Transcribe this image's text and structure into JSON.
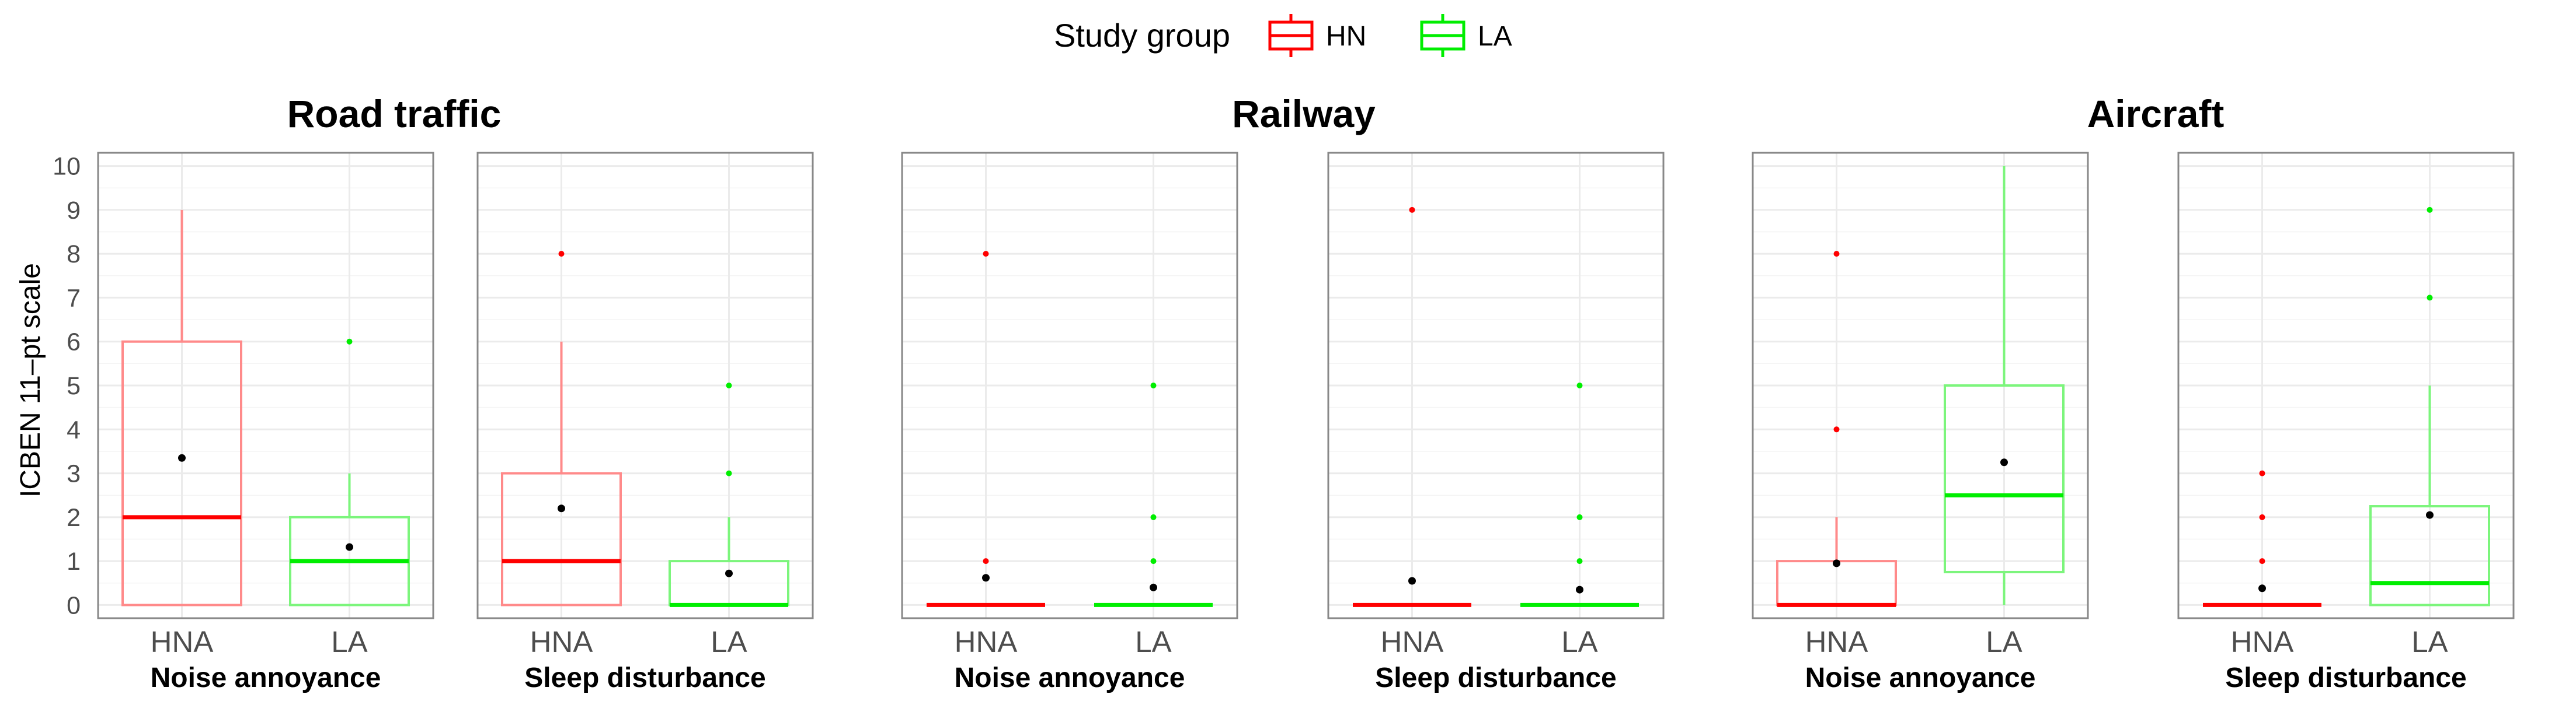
{
  "chart_data": {
    "type": "boxplot",
    "legend": {
      "title": "Study group",
      "position": "top-center",
      "entries": [
        {
          "label": "HN",
          "color": "#ff0000",
          "fill": "#ff8a8a"
        },
        {
          "label": "LA",
          "color": "#00ee00",
          "fill": "#7cf57c"
        }
      ]
    },
    "ylabel": "ICBEN 11–pt scale",
    "ylim": [
      -0.3,
      10.3
    ],
    "yticks": [
      "0",
      "1",
      "2",
      "3",
      "4",
      "5",
      "6",
      "7",
      "8",
      "9",
      "10"
    ],
    "mean_color": "#000000",
    "sources": [
      {
        "title": "Road traffic"
      },
      {
        "title": "Railway"
      },
      {
        "title": "Aircraft"
      }
    ],
    "panels": [
      {
        "source": 0,
        "xlabel": "Noise annoyance",
        "boxes": [
          {
            "group": "HN",
            "tick": "HNA",
            "q1": 0,
            "median": 2,
            "q3": 6,
            "lower": 0,
            "upper": 9,
            "mean": 3.35,
            "outliers": []
          },
          {
            "group": "LA",
            "tick": "LA",
            "q1": 0,
            "median": 1,
            "q3": 2,
            "lower": 0,
            "upper": 3,
            "mean": 1.32,
            "outliers": [
              6
            ]
          }
        ]
      },
      {
        "source": 0,
        "xlabel": "Sleep disturbance",
        "boxes": [
          {
            "group": "HN",
            "tick": "HNA",
            "q1": 0,
            "median": 1,
            "q3": 3,
            "lower": 0,
            "upper": 6,
            "mean": 2.2,
            "outliers": [
              8
            ]
          },
          {
            "group": "LA",
            "tick": "LA",
            "q1": 0,
            "median": 0,
            "q3": 1,
            "lower": 0,
            "upper": 2,
            "mean": 0.72,
            "outliers": [
              3,
              5
            ]
          }
        ]
      },
      {
        "source": 1,
        "xlabel": "Noise annoyance",
        "boxes": [
          {
            "group": "HN",
            "tick": "HNA",
            "q1": 0,
            "median": 0,
            "q3": 0,
            "lower": 0,
            "upper": 0,
            "mean": 0.62,
            "outliers": [
              1,
              8
            ]
          },
          {
            "group": "LA",
            "tick": "LA",
            "q1": 0,
            "median": 0,
            "q3": 0,
            "lower": 0,
            "upper": 0,
            "mean": 0.4,
            "outliers": [
              1,
              2,
              5
            ]
          }
        ]
      },
      {
        "source": 1,
        "xlabel": "Sleep disturbance",
        "boxes": [
          {
            "group": "HN",
            "tick": "HNA",
            "q1": 0,
            "median": 0,
            "q3": 0,
            "lower": 0,
            "upper": 0,
            "mean": 0.55,
            "outliers": [
              9
            ]
          },
          {
            "group": "LA",
            "tick": "LA",
            "q1": 0,
            "median": 0,
            "q3": 0,
            "lower": 0,
            "upper": 0,
            "mean": 0.35,
            "outliers": [
              1,
              2,
              5
            ]
          }
        ]
      },
      {
        "source": 2,
        "xlabel": "Noise annoyance",
        "boxes": [
          {
            "group": "HN",
            "tick": "HNA",
            "q1": 0,
            "median": 0,
            "q3": 1,
            "lower": 0,
            "upper": 2,
            "mean": 0.95,
            "outliers": [
              4,
              8
            ]
          },
          {
            "group": "LA",
            "tick": "LA",
            "q1": 0.75,
            "median": 2.5,
            "q3": 5,
            "lower": 0,
            "upper": 10,
            "mean": 3.25,
            "outliers": []
          }
        ]
      },
      {
        "source": 2,
        "xlabel": "Sleep disturbance",
        "boxes": [
          {
            "group": "HN",
            "tick": "HNA",
            "q1": 0,
            "median": 0,
            "q3": 0,
            "lower": 0,
            "upper": 0,
            "mean": 0.38,
            "outliers": [
              1,
              2,
              3
            ]
          },
          {
            "group": "LA",
            "tick": "LA",
            "q1": 0,
            "median": 0.5,
            "q3": 2.25,
            "lower": 0,
            "upper": 5,
            "mean": 2.05,
            "outliers": [
              7,
              9
            ]
          }
        ]
      }
    ]
  }
}
